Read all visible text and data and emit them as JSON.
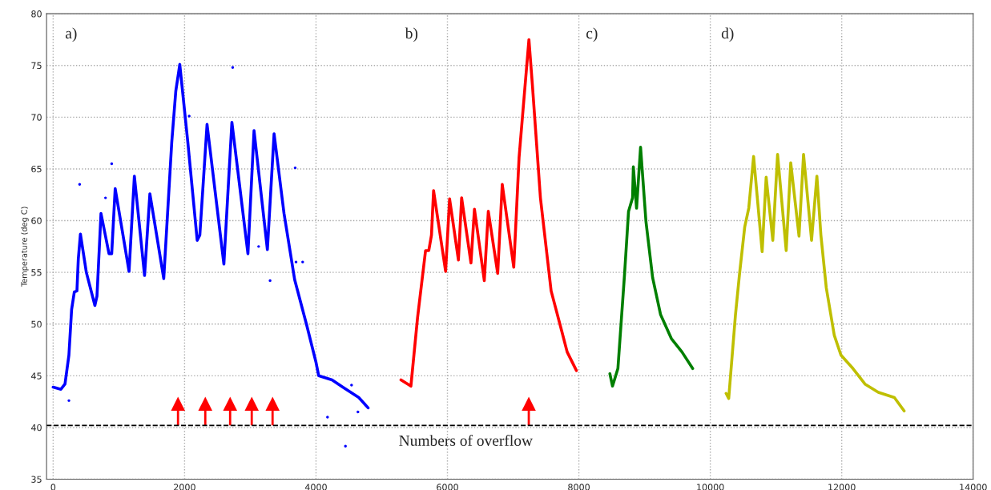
{
  "chart_data": {
    "type": "line",
    "ylabel": "Temperature (deg C)",
    "xlim": [
      -100,
      14000
    ],
    "ylim": [
      35,
      80
    ],
    "xticks": [
      0,
      2000,
      4000,
      6000,
      8000,
      10000,
      12000,
      14000
    ],
    "yticks": [
      35,
      40,
      45,
      50,
      55,
      60,
      65,
      70,
      75,
      80
    ],
    "grid": true,
    "line_style": "solid",
    "marker": "none",
    "series": [
      {
        "color": "#0000ff",
        "x": [
          0,
          118,
          180,
          240,
          281,
          322,
          362,
          383,
          415,
          505,
          635,
          667,
          728,
          850,
          891,
          944,
          1155,
          1236,
          1391,
          1472,
          1683,
          1805,
          1866,
          1927,
          2049,
          2192,
          2232,
          2342,
          2598,
          2720,
          2964,
          3057,
          3260,
          3362,
          3513,
          3675,
          3858,
          4000,
          4041,
          4244,
          4407,
          4651,
          4793
        ],
        "values": [
          43.9,
          43.7,
          44.2,
          47.0,
          51.4,
          53.1,
          53.2,
          56.3,
          58.7,
          55.0,
          51.8,
          52.7,
          60.7,
          56.8,
          56.8,
          63.1,
          55.1,
          64.3,
          54.7,
          62.6,
          54.4,
          67.6,
          72.5,
          75.1,
          67.6,
          58.1,
          58.6,
          69.3,
          55.8,
          69.5,
          56.8,
          68.7,
          57.2,
          68.4,
          60.7,
          54.3,
          49.9,
          46.3,
          45.0,
          44.6,
          43.9,
          42.9,
          41.9
        ]
      },
      {
        "type": "scatter",
        "marker": "circle",
        "color": "#0000ff",
        "x": [
          891,
          403,
          797,
          2732,
          2070,
          3683,
          3696,
          3797,
          3127,
          3301,
          240,
          4175,
          4638,
          4541,
          4448
        ],
        "values": [
          65.5,
          63.5,
          62.2,
          74.8,
          70.1,
          65.1,
          56.0,
          56.0,
          57.5,
          54.2,
          42.6,
          41.0,
          41.5,
          44.1,
          38.2
        ]
      },
      {
        "color": "#ff0000",
        "x": [
          5293,
          5444,
          5545,
          5667,
          5716,
          5757,
          5789,
          5972,
          6033,
          6167,
          6216,
          6358,
          6411,
          6561,
          6622,
          6765,
          6834,
          7009,
          7090,
          7240,
          7293,
          7415,
          7578,
          7740,
          7822,
          7963
        ],
        "values": [
          44.6,
          44.0,
          50.6,
          57.1,
          57.1,
          58.6,
          62.9,
          55.1,
          62.1,
          56.2,
          62.2,
          55.9,
          61.1,
          54.2,
          60.9,
          54.9,
          63.5,
          55.5,
          66.1,
          77.5,
          73.1,
          62.2,
          53.2,
          49.3,
          47.3,
          45.5
        ]
      },
      {
        "color": "#007f00",
        "x": [
          8472,
          8512,
          8594,
          8695,
          8756,
          8817,
          8829,
          8878,
          8939,
          9021,
          9122,
          9244,
          9407,
          9569,
          9732
        ],
        "values": [
          45.2,
          44.0,
          45.7,
          54.8,
          60.9,
          62.2,
          65.2,
          61.2,
          67.1,
          59.9,
          54.5,
          50.9,
          48.6,
          47.3,
          45.7
        ]
      },
      {
        "color": "#bfbf00",
        "x": [
          10240,
          10280,
          10383,
          10444,
          10524,
          10585,
          10659,
          10789,
          10850,
          10951,
          11024,
          11155,
          11224,
          11350,
          11419,
          11541,
          11622,
          11683,
          11765,
          11887,
          11988,
          12171,
          12354,
          12557,
          12801,
          12950
        ],
        "values": [
          43.3,
          42.8,
          50.9,
          54.8,
          59.4,
          61.2,
          66.2,
          57.0,
          64.2,
          58.1,
          66.4,
          57.1,
          65.6,
          58.5,
          66.4,
          58.1,
          64.3,
          58.6,
          53.5,
          48.9,
          47.0,
          45.7,
          44.2,
          43.4,
          42.9,
          41.6
        ]
      },
      {
        "type": "scatter",
        "marker": "triangle",
        "color": "#ff0000",
        "x": [
          1900,
          2315,
          2693,
          3022,
          3339,
          7238
        ],
        "values": [
          42.3,
          42.3,
          42.3,
          42.3,
          42.3,
          42.3
        ]
      }
    ],
    "ref_lines": [
      {
        "axis": "y",
        "value": 40.2,
        "color": "#000000",
        "line_style": "dashed"
      }
    ],
    "annotations": [
      "a)",
      "b)",
      "c)",
      "d)",
      "Numbers of overflow"
    ]
  }
}
